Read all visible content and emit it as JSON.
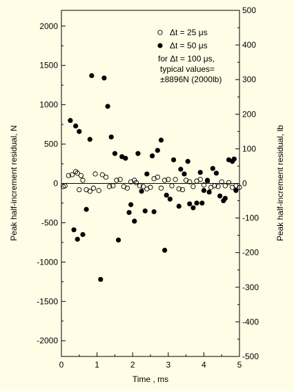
{
  "chart_data": {
    "type": "scatter",
    "xlabel": "Time , ms",
    "ylabel_left": "Peak half-increment residual, N",
    "ylabel_right": "Peak half-increment residual, lb",
    "xlim": [
      0,
      5
    ],
    "ylim_left": [
      -2200,
      2200
    ],
    "ylim_right": [
      -500,
      500
    ],
    "x_ticks": [
      "0",
      "1",
      "2",
      "3",
      "4",
      "5"
    ],
    "y_ticks_left": [
      "-2000",
      "-1500",
      "-1000",
      "-500",
      "0",
      "500",
      "1000",
      "1500",
      "2000"
    ],
    "y_ticks_right": [
      "-500",
      "-400",
      "-300",
      "-200",
      "-100",
      "0",
      "100",
      "200",
      "300",
      "400",
      "500"
    ],
    "grid": false,
    "zero_line": true,
    "legend_position": "top-right",
    "series": [
      {
        "name": "Δt = 25 μs",
        "marker": "open-circle",
        "points": [
          [
            0.05,
            -40
          ],
          [
            0.1,
            -30
          ],
          [
            0.2,
            100
          ],
          [
            0.3,
            110
          ],
          [
            0.4,
            150
          ],
          [
            0.45,
            130
          ],
          [
            0.5,
            -80
          ],
          [
            0.55,
            100
          ],
          [
            0.6,
            40
          ],
          [
            0.7,
            -80
          ],
          [
            0.8,
            -100
          ],
          [
            0.9,
            -60
          ],
          [
            0.95,
            120
          ],
          [
            1.05,
            -90
          ],
          [
            1.15,
            110
          ],
          [
            1.25,
            80
          ],
          [
            1.35,
            -40
          ],
          [
            1.45,
            -30
          ],
          [
            1.55,
            40
          ],
          [
            1.65,
            50
          ],
          [
            1.75,
            -40
          ],
          [
            1.85,
            -60
          ],
          [
            1.95,
            20
          ],
          [
            2.05,
            40
          ],
          [
            2.1,
            10
          ],
          [
            2.2,
            -30
          ],
          [
            2.3,
            -40
          ],
          [
            2.4,
            -70
          ],
          [
            2.5,
            -50
          ],
          [
            2.6,
            60
          ],
          [
            2.7,
            80
          ],
          [
            2.8,
            -60
          ],
          [
            2.9,
            40
          ],
          [
            3.0,
            50
          ],
          [
            3.1,
            -30
          ],
          [
            3.2,
            50
          ],
          [
            3.3,
            -70
          ],
          [
            3.4,
            -80
          ],
          [
            3.5,
            40
          ],
          [
            3.6,
            20
          ],
          [
            3.7,
            -40
          ],
          [
            3.8,
            30
          ],
          [
            3.9,
            50
          ],
          [
            4.0,
            -20
          ],
          [
            4.1,
            30
          ],
          [
            4.2,
            -50
          ],
          [
            4.3,
            -30
          ],
          [
            4.4,
            -40
          ],
          [
            4.5,
            20
          ],
          [
            4.6,
            -30
          ],
          [
            4.7,
            10
          ],
          [
            4.8,
            -50
          ],
          [
            4.9,
            -30
          ],
          [
            5.0,
            -50
          ]
        ]
      },
      {
        "name": "Δt = 50 μs",
        "marker": "filled-circle",
        "points": [
          [
            0.25,
            800
          ],
          [
            0.35,
            -590
          ],
          [
            0.4,
            730
          ],
          [
            0.45,
            -710
          ],
          [
            0.5,
            660
          ],
          [
            0.6,
            -650
          ],
          [
            0.7,
            -330
          ],
          [
            0.8,
            560
          ],
          [
            0.85,
            1370
          ],
          [
            1.1,
            -1220
          ],
          [
            1.2,
            1340
          ],
          [
            1.3,
            980
          ],
          [
            1.4,
            590
          ],
          [
            1.5,
            380
          ],
          [
            1.6,
            -720
          ],
          [
            1.7,
            340
          ],
          [
            1.8,
            320
          ],
          [
            1.9,
            -370
          ],
          [
            1.95,
            -270
          ],
          [
            2.05,
            -480
          ],
          [
            2.15,
            380
          ],
          [
            2.25,
            -100
          ],
          [
            2.35,
            -350
          ],
          [
            2.4,
            120
          ],
          [
            2.55,
            350
          ],
          [
            2.6,
            -360
          ],
          [
            2.7,
            420
          ],
          [
            2.8,
            550
          ],
          [
            2.9,
            -850
          ],
          [
            2.95,
            -150
          ],
          [
            3.05,
            -200
          ],
          [
            3.15,
            300
          ],
          [
            3.3,
            -290
          ],
          [
            3.35,
            180
          ],
          [
            3.45,
            120
          ],
          [
            3.55,
            280
          ],
          [
            3.6,
            -260
          ],
          [
            3.7,
            -310
          ],
          [
            3.8,
            -250
          ],
          [
            3.9,
            140
          ],
          [
            3.95,
            -250
          ],
          [
            4.0,
            -90
          ],
          [
            4.1,
            40
          ],
          [
            4.15,
            -110
          ],
          [
            4.25,
            190
          ],
          [
            4.35,
            130
          ],
          [
            4.45,
            -160
          ],
          [
            4.55,
            -220
          ],
          [
            4.6,
            -190
          ],
          [
            4.7,
            300
          ],
          [
            4.8,
            280
          ],
          [
            4.85,
            310
          ],
          [
            4.9,
            -90
          ]
        ]
      }
    ],
    "annotation": {
      "line1": "for Δt = 100 μs,",
      "line2": "typical values=",
      "line3": "±8896N (2000lb)"
    }
  }
}
